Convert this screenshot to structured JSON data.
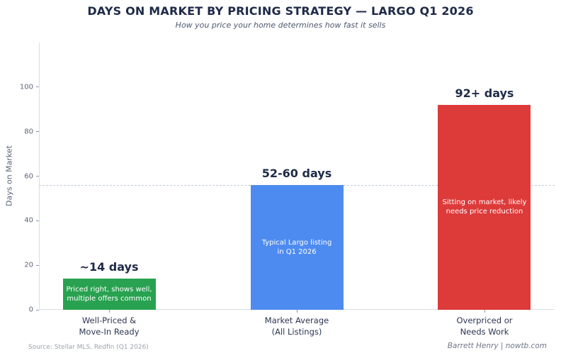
{
  "header": {
    "title": "DAYS ON MARKET BY PRICING STRATEGY — LARGO Q1 2026",
    "subtitle": "How you price your home determines how fast it sells"
  },
  "chart_data": {
    "type": "bar",
    "title": "DAYS ON MARKET BY PRICING STRATEGY — LARGO Q1 2026",
    "subtitle": "How you price your home determines how fast it sells",
    "xlabel": "",
    "ylabel": "Days on Market",
    "ylim": [
      0,
      120
    ],
    "yticks": [
      0,
      20,
      40,
      60,
      80,
      100
    ],
    "grid": false,
    "legend": false,
    "reference_line": {
      "value": 56,
      "style": "dashed",
      "color": "#c4cdd9"
    },
    "categories": [
      [
        "Well-Priced &",
        "Move-In Ready"
      ],
      [
        "Market Average",
        "(All Listings)"
      ],
      [
        "Overpriced or",
        "Needs Work"
      ]
    ],
    "values": [
      14,
      56,
      92
    ],
    "value_labels": [
      "~14 days",
      "52-60 days",
      "92+ days"
    ],
    "bar_annotations": [
      [
        "Priced right, shows well,",
        "multiple offers common"
      ],
      [
        "Typical Largo listing",
        "in Q1 2026"
      ],
      [
        "Sitting on market, likely",
        "needs price reduction"
      ]
    ],
    "bar_colors": [
      "#28a250",
      "#4d8bf0",
      "#dd3a3a"
    ]
  },
  "footer": {
    "source": "Source: Stellar MLS, Redfin (Q1 2026)",
    "credit": "Barrett Henry | nowtb.com"
  },
  "colors": {
    "title_text": "#1e2a47",
    "axis_spine": "#d9dee6",
    "tick_label": "#5a6577",
    "bar_text": "#ffffff"
  }
}
